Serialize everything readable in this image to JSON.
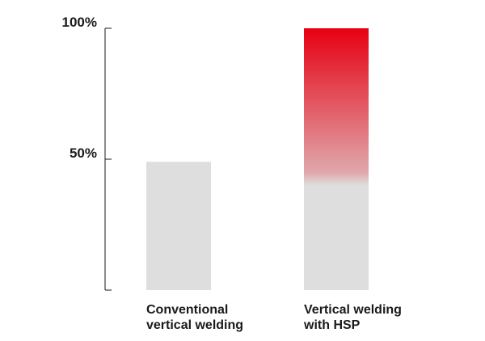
{
  "chart_data": {
    "type": "bar",
    "title": "",
    "xlabel": "",
    "ylabel": "",
    "ylim": [
      0,
      100
    ],
    "grid": false,
    "y_ticks": [
      {
        "value": 50,
        "label": "50%"
      },
      {
        "value": 100,
        "label": "100%"
      }
    ],
    "categories": [
      [
        "Conventional",
        "vertical welding"
      ],
      [
        "Vertical welding",
        "with HSP"
      ]
    ],
    "values": [
      49,
      100
    ],
    "colors": {
      "base_bar": "#dedede",
      "highlight_top": "#e60012",
      "axis": "#1a1a1a"
    }
  }
}
